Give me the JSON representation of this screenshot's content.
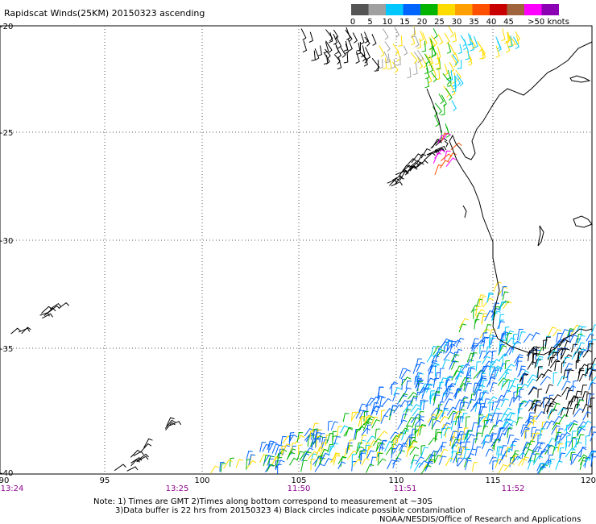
{
  "title": "Rapidscat Winds(25KM) 20150323 ascending",
  "legend": {
    "ticks": [
      "0",
      "5",
      "10",
      "15",
      "20",
      "25",
      "30",
      "35",
      "40",
      "45",
      ">50 knots"
    ],
    "colors": [
      "#555555",
      "#a0a0a0",
      "#00c8ff",
      "#0064ff",
      "#00b400",
      "#ffdc00",
      "#ffa000",
      "#ff5000",
      "#c80000",
      "#a0643c",
      "#ff00ff",
      "#8c00b4"
    ]
  },
  "lat_labels": [
    "-20",
    "-25",
    "-30",
    "-35",
    "-40"
  ],
  "lon_labels": [
    "90",
    "95",
    "100",
    "105",
    "110",
    "115",
    "120"
  ],
  "time_labels": [
    "13:24",
    "13:25",
    "11:50",
    "11:51",
    "11:52"
  ],
  "time_color": "#8b008b",
  "notes": [
    "Note: 1) Times are GMT 2)Times along bottom correspond to measurement at ~30S",
    "3)Data buffer is 22 hrs from 20150323 4) Black circles indicate possible contamination",
    "NOAA/NESDIS/Office of Research and Applications"
  ]
}
